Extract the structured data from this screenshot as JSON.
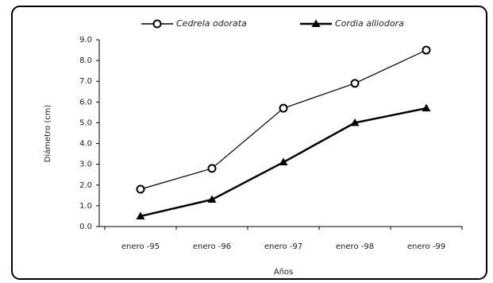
{
  "chart_data": {
    "type": "line",
    "x_label": "Años",
    "y_label": "Diámetro (cm)",
    "categories": [
      "enero -95",
      "enero -96",
      "enero -97",
      "enero -98",
      "enero -99"
    ],
    "series": [
      {
        "name": "Cedrela odorata",
        "color": "#000000",
        "marker": "circle",
        "values": [
          1.8,
          2.8,
          5.7,
          6.9,
          8.5
        ]
      },
      {
        "name": "Cordia alliodora",
        "color": "#000000",
        "marker": "triangle",
        "values": [
          0.5,
          1.3,
          3.1,
          5.0,
          5.7
        ]
      }
    ],
    "ylim": [
      0,
      9
    ],
    "yticks": [
      {
        "value": 0,
        "label": "0.0"
      },
      {
        "value": 1,
        "label": "1.0"
      },
      {
        "value": 2,
        "label": "2.0"
      },
      {
        "value": 3,
        "label": "3.0"
      },
      {
        "value": 4,
        "label": "4.0"
      },
      {
        "value": 5,
        "label": "5.0"
      },
      {
        "value": 6,
        "label": "6.0"
      },
      {
        "value": 7,
        "label": "7.0"
      },
      {
        "value": 8,
        "label": "8.0"
      },
      {
        "value": 9,
        "label": "9.0"
      }
    ],
    "legend": "top",
    "grid": false
  }
}
